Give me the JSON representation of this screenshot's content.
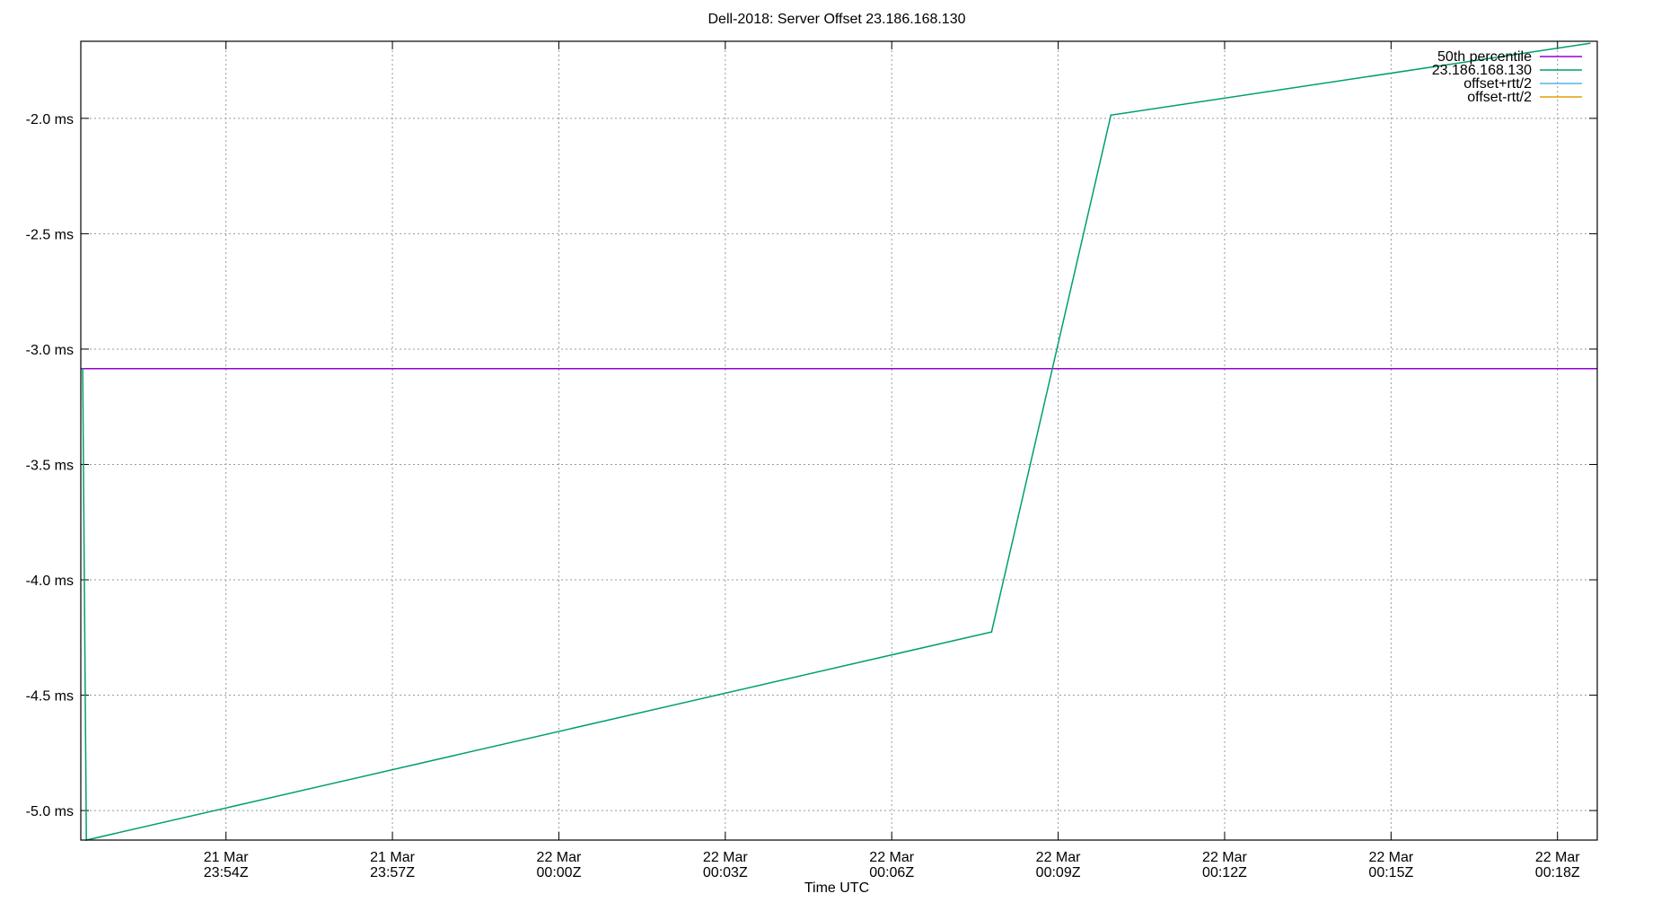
{
  "chart_data": {
    "type": "line",
    "title": "Dell-2018: Server Offset 23.186.168.130",
    "xlabel": "Time UTC",
    "ylabel": "",
    "xlim": [
      "21 Mar 23:51:23",
      "22 Mar 00:18:43"
    ],
    "ylim": [
      -5.128,
      -1.666
    ],
    "grid": true,
    "legend_position": "top-right",
    "x_ticks": [
      {
        "t": "21 Mar 23:54",
        "line1": "21 Mar",
        "line2": "23:54Z"
      },
      {
        "t": "21 Mar 23:57",
        "line1": "21 Mar",
        "line2": "23:57Z"
      },
      {
        "t": "22 Mar 00:00",
        "line1": "22 Mar",
        "line2": "00:00Z"
      },
      {
        "t": "22 Mar 00:03",
        "line1": "22 Mar",
        "line2": "00:03Z"
      },
      {
        "t": "22 Mar 00:06",
        "line1": "22 Mar",
        "line2": "00:06Z"
      },
      {
        "t": "22 Mar 00:09",
        "line1": "22 Mar",
        "line2": "00:09Z"
      },
      {
        "t": "22 Mar 00:12",
        "line1": "22 Mar",
        "line2": "00:12Z"
      },
      {
        "t": "22 Mar 00:15",
        "line1": "22 Mar",
        "line2": "00:15Z"
      },
      {
        "t": "22 Mar 00:18",
        "line1": "22 Mar",
        "line2": "00:18Z"
      }
    ],
    "y_ticks": [
      {
        "v": -2.0,
        "label": "-2.0 ms"
      },
      {
        "v": -2.5,
        "label": "-2.5 ms"
      },
      {
        "v": -3.0,
        "label": "-3.0 ms"
      },
      {
        "v": -3.5,
        "label": "-3.5 ms"
      },
      {
        "v": -4.0,
        "label": "-4.0 ms"
      },
      {
        "v": -4.5,
        "label": "-4.5 ms"
      },
      {
        "v": -5.0,
        "label": "-5.0 ms"
      }
    ],
    "series": [
      {
        "name": "50th percentile",
        "color": "#9400d3",
        "constant": -3.085
      },
      {
        "name": "23.186.168.130",
        "color": "#009e73",
        "points": [
          {
            "t": "21 Mar 23:51:25",
            "y": -3.085
          },
          {
            "t": "21 Mar 23:51:29",
            "y": -5.128
          },
          {
            "t": "22 Mar 00:07:48",
            "y": -4.226
          },
          {
            "t": "22 Mar 00:09:57",
            "y": -1.986
          },
          {
            "t": "22 Mar 00:18:35",
            "y": -1.675
          }
        ]
      },
      {
        "name": "offset+rtt/2",
        "color": "#56b4e9",
        "points": []
      },
      {
        "name": "offset-rtt/2",
        "color": "#e69f00",
        "points": []
      }
    ]
  }
}
